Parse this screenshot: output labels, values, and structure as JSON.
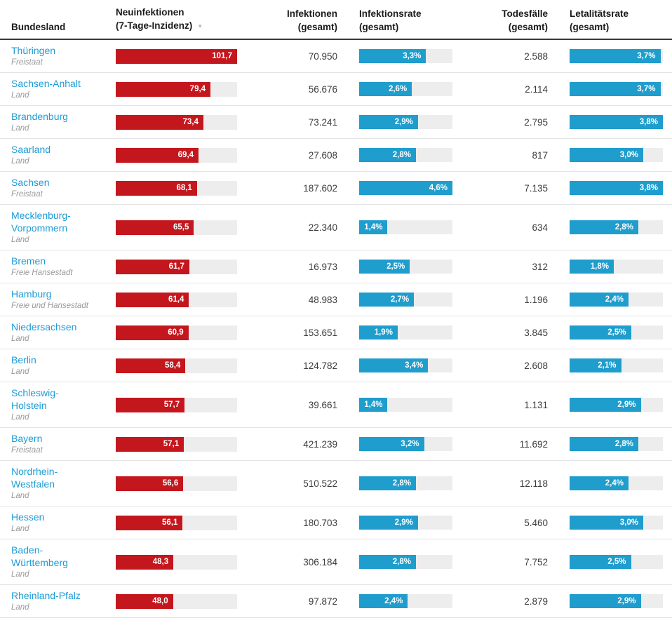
{
  "header": {
    "col1": "Bundesland",
    "col2_line1": "Neuinfektionen",
    "col2_line2": "(7-Tage-Inzidenz)",
    "sort_indicator": "▼",
    "col3_line1": "Infektionen",
    "col3_line2": "(gesamt)",
    "col4_line1": "Infektionsrate",
    "col4_line2": "(gesamt)",
    "col5_line1": "Todesfälle",
    "col5_line2": "(gesamt)",
    "col6_line1": "Letalitätsrate",
    "col6_line2": "(gesamt)"
  },
  "colors": {
    "bar_red": "#c4171d",
    "bar_blue": "#1f9dcd",
    "link_blue": "#1e9cd6",
    "track_gray": "#ededed"
  },
  "chart_data": {
    "type": "table",
    "columns": [
      "Bundesland",
      "Neuinfektionen (7-Tage-Inzidenz)",
      "Infektionen (gesamt)",
      "Infektionsrate (gesamt)",
      "Todesfälle (gesamt)",
      "Letalitätsrate (gesamt)"
    ],
    "sort": {
      "column": "Neuinfektionen (7-Tage-Inzidenz)",
      "direction": "desc"
    },
    "bar_scales": {
      "incidence_max": 101.7,
      "infection_rate_max": 4.6,
      "fatality_rate_max": 3.8
    },
    "rows": [
      {
        "name": "Thüringen",
        "type": "Freistaat",
        "incidence": 101.7,
        "incidence_label": "101,7",
        "infections": "70.950",
        "infection_rate": 3.3,
        "infection_rate_label": "3,3%",
        "deaths": "2.588",
        "fatality_rate": 3.7,
        "fatality_rate_label": "3,7%"
      },
      {
        "name": "Sachsen-Anhalt",
        "type": "Land",
        "incidence": 79.4,
        "incidence_label": "79,4",
        "infections": "56.676",
        "infection_rate": 2.6,
        "infection_rate_label": "2,6%",
        "deaths": "2.114",
        "fatality_rate": 3.7,
        "fatality_rate_label": "3,7%"
      },
      {
        "name": "Brandenburg",
        "type": "Land",
        "incidence": 73.4,
        "incidence_label": "73,4",
        "infections": "73.241",
        "infection_rate": 2.9,
        "infection_rate_label": "2,9%",
        "deaths": "2.795",
        "fatality_rate": 3.8,
        "fatality_rate_label": "3,8%"
      },
      {
        "name": "Saarland",
        "type": "Land",
        "incidence": 69.4,
        "incidence_label": "69,4",
        "infections": "27.608",
        "infection_rate": 2.8,
        "infection_rate_label": "2,8%",
        "deaths": "817",
        "fatality_rate": 3.0,
        "fatality_rate_label": "3,0%"
      },
      {
        "name": "Sachsen",
        "type": "Freistaat",
        "incidence": 68.1,
        "incidence_label": "68,1",
        "infections": "187.602",
        "infection_rate": 4.6,
        "infection_rate_label": "4,6%",
        "deaths": "7.135",
        "fatality_rate": 3.8,
        "fatality_rate_label": "3,8%"
      },
      {
        "name": "Mecklenburg-\nVorpommern",
        "type": "Land",
        "incidence": 65.5,
        "incidence_label": "65,5",
        "infections": "22.340",
        "infection_rate": 1.4,
        "infection_rate_label": "1,4%",
        "deaths": "634",
        "fatality_rate": 2.8,
        "fatality_rate_label": "2,8%"
      },
      {
        "name": "Bremen",
        "type": "Freie Hansestadt",
        "incidence": 61.7,
        "incidence_label": "61,7",
        "infections": "16.973",
        "infection_rate": 2.5,
        "infection_rate_label": "2,5%",
        "deaths": "312",
        "fatality_rate": 1.8,
        "fatality_rate_label": "1,8%"
      },
      {
        "name": "Hamburg",
        "type": "Freie und Hansestadt",
        "incidence": 61.4,
        "incidence_label": "61,4",
        "infections": "48.983",
        "infection_rate": 2.7,
        "infection_rate_label": "2,7%",
        "deaths": "1.196",
        "fatality_rate": 2.4,
        "fatality_rate_label": "2,4%"
      },
      {
        "name": "Niedersachsen",
        "type": "Land",
        "incidence": 60.9,
        "incidence_label": "60,9",
        "infections": "153.651",
        "infection_rate": 1.9,
        "infection_rate_label": "1,9%",
        "deaths": "3.845",
        "fatality_rate": 2.5,
        "fatality_rate_label": "2,5%"
      },
      {
        "name": "Berlin",
        "type": "Land",
        "incidence": 58.4,
        "incidence_label": "58,4",
        "infections": "124.782",
        "infection_rate": 3.4,
        "infection_rate_label": "3,4%",
        "deaths": "2.608",
        "fatality_rate": 2.1,
        "fatality_rate_label": "2,1%"
      },
      {
        "name": "Schleswig-\nHolstein",
        "type": "Land",
        "incidence": 57.7,
        "incidence_label": "57,7",
        "infections": "39.661",
        "infection_rate": 1.4,
        "infection_rate_label": "1,4%",
        "deaths": "1.131",
        "fatality_rate": 2.9,
        "fatality_rate_label": "2,9%"
      },
      {
        "name": "Bayern",
        "type": "Freistaat",
        "incidence": 57.1,
        "incidence_label": "57,1",
        "infections": "421.239",
        "infection_rate": 3.2,
        "infection_rate_label": "3,2%",
        "deaths": "11.692",
        "fatality_rate": 2.8,
        "fatality_rate_label": "2,8%"
      },
      {
        "name": "Nordrhein-\nWestfalen",
        "type": "Land",
        "incidence": 56.6,
        "incidence_label": "56,6",
        "infections": "510.522",
        "infection_rate": 2.8,
        "infection_rate_label": "2,8%",
        "deaths": "12.118",
        "fatality_rate": 2.4,
        "fatality_rate_label": "2,4%"
      },
      {
        "name": "Hessen",
        "type": "Land",
        "incidence": 56.1,
        "incidence_label": "56,1",
        "infections": "180.703",
        "infection_rate": 2.9,
        "infection_rate_label": "2,9%",
        "deaths": "5.460",
        "fatality_rate": 3.0,
        "fatality_rate_label": "3,0%"
      },
      {
        "name": "Baden-\nWürttemberg",
        "type": "Land",
        "incidence": 48.3,
        "incidence_label": "48,3",
        "infections": "306.184",
        "infection_rate": 2.8,
        "infection_rate_label": "2,8%",
        "deaths": "7.752",
        "fatality_rate": 2.5,
        "fatality_rate_label": "2,5%"
      },
      {
        "name": "Rheinland-Pfalz",
        "type": "Land",
        "incidence": 48.0,
        "incidence_label": "48,0",
        "infections": "97.872",
        "infection_rate": 2.4,
        "infection_rate_label": "2,4%",
        "deaths": "2.879",
        "fatality_rate": 2.9,
        "fatality_rate_label": "2,9%"
      }
    ]
  }
}
